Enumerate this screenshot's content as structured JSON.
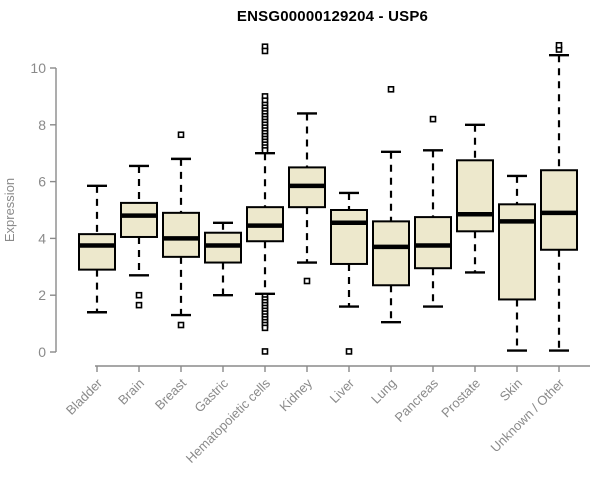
{
  "page": {
    "background": "#ffffff"
  },
  "chart_data": {
    "type": "boxplot",
    "title": "ENSG00000129204 - USP6",
    "ylabel": "Expression",
    "xlabel": "",
    "ylim": [
      0,
      10
    ],
    "yticks": [
      0,
      2,
      4,
      6,
      8,
      10
    ],
    "grid": false,
    "legend": "none",
    "colors": {
      "box_fill": "#EDE8CC",
      "box_stroke": "#000000",
      "median": "#000000",
      "outlier_stroke": "#000000",
      "outlier_fill": "#ffffff",
      "axis": "#8a8a8a",
      "tick_label": "#8a8a8a",
      "title": "#000000"
    },
    "categories": [
      "Bladder",
      "Brain",
      "Breast",
      "Gastric",
      "Hematopoietic cells",
      "Kidney",
      "Liver",
      "Lung",
      "Pancreas",
      "Prostate",
      "Skin",
      "Unknown / Other"
    ],
    "boxes": [
      {
        "category": "Bladder",
        "whisker_low": 1.4,
        "q1": 2.9,
        "median": 3.75,
        "q3": 4.15,
        "whisker_high": 5.85,
        "outliers": []
      },
      {
        "category": "Brain",
        "whisker_low": 2.7,
        "q1": 4.05,
        "median": 4.8,
        "q3": 5.25,
        "whisker_high": 6.55,
        "outliers": [
          2.0,
          1.65
        ]
      },
      {
        "category": "Breast",
        "whisker_low": 1.3,
        "q1": 3.35,
        "median": 4.0,
        "q3": 4.9,
        "whisker_high": 6.8,
        "outliers": [
          7.65,
          0.95
        ]
      },
      {
        "category": "Gastric",
        "whisker_low": 2.0,
        "q1": 3.15,
        "median": 3.75,
        "q3": 4.2,
        "whisker_high": 4.55,
        "outliers": []
      },
      {
        "category": "Hematopoietic cells",
        "whisker_low": 2.05,
        "q1": 3.9,
        "median": 4.45,
        "q3": 5.1,
        "whisker_high": 7.0,
        "outliers": [
          10.75,
          10.6,
          9.0,
          8.85,
          8.7,
          8.6,
          8.5,
          8.4,
          8.3,
          8.2,
          8.1,
          8.0,
          7.9,
          7.8,
          7.7,
          7.6,
          7.5,
          7.4,
          7.3,
          7.2,
          7.1,
          1.95,
          1.85,
          1.75,
          1.65,
          1.55,
          1.45,
          1.35,
          1.25,
          1.15,
          1.05,
          0.95,
          0.85,
          0.02
        ]
      },
      {
        "category": "Kidney",
        "whisker_low": 3.15,
        "q1": 5.1,
        "median": 5.85,
        "q3": 6.5,
        "whisker_high": 8.4,
        "outliers": [
          2.5
        ]
      },
      {
        "category": "Liver",
        "whisker_low": 1.6,
        "q1": 3.1,
        "median": 4.55,
        "q3": 5.0,
        "whisker_high": 5.6,
        "outliers": [
          0.02
        ]
      },
      {
        "category": "Lung",
        "whisker_low": 1.05,
        "q1": 2.35,
        "median": 3.7,
        "q3": 4.6,
        "whisker_high": 7.05,
        "outliers": [
          9.25
        ]
      },
      {
        "category": "Pancreas",
        "whisker_low": 1.6,
        "q1": 2.95,
        "median": 3.75,
        "q3": 4.75,
        "whisker_high": 7.1,
        "outliers": [
          8.2
        ]
      },
      {
        "category": "Prostate",
        "whisker_low": 2.8,
        "q1": 4.25,
        "median": 4.85,
        "q3": 6.75,
        "whisker_high": 8.0,
        "outliers": []
      },
      {
        "category": "Skin",
        "whisker_low": 0.05,
        "q1": 1.85,
        "median": 4.6,
        "q3": 5.2,
        "whisker_high": 6.2,
        "outliers": []
      },
      {
        "category": "Unknown / Other",
        "whisker_low": 0.05,
        "q1": 3.6,
        "median": 4.9,
        "q3": 6.4,
        "whisker_high": 10.45,
        "outliers": [
          10.65,
          10.8
        ]
      }
    ]
  }
}
